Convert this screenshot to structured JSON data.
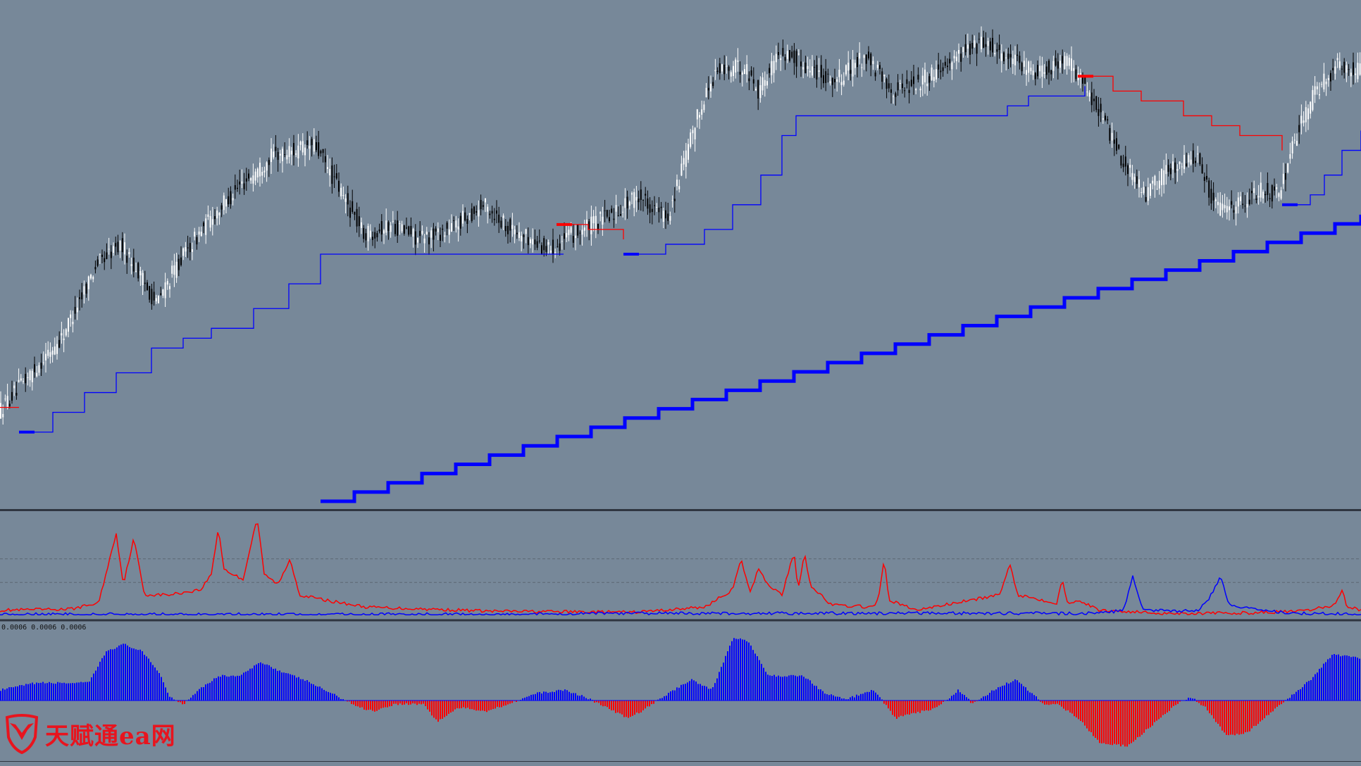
{
  "colors": {
    "background": "#778899",
    "candle_bull": "#ffffff",
    "candle_bear": "#000000",
    "trail_up": "#0000ff",
    "trail_down": "#ff0000",
    "separator": "#2f3540",
    "zero_line": "#0000ff",
    "hist_pos": "#0000ff",
    "hist_neg": "#ff0000",
    "grid": "#5c6773"
  },
  "watermark": {
    "text": "天赋通ea网",
    "icon": "bull-shield-icon"
  },
  "panel3": {
    "label": "0.0006 0.0006 0.0006"
  },
  "chart_data": [
    {
      "type": "candlestick",
      "panel": "main",
      "grid": false,
      "ylim": [
        0,
        1
      ],
      "price_path": [
        [
          0,
          0.18
        ],
        [
          60,
          0.28
        ],
        [
          90,
          0.33
        ],
        [
          140,
          0.48
        ],
        [
          175,
          0.52
        ],
        [
          225,
          0.4
        ],
        [
          255,
          0.48
        ],
        [
          300,
          0.57
        ],
        [
          345,
          0.64
        ],
        [
          390,
          0.7
        ],
        [
          450,
          0.72
        ],
        [
          520,
          0.54
        ],
        [
          560,
          0.56
        ],
        [
          600,
          0.53
        ],
        [
          640,
          0.55
        ],
        [
          690,
          0.6
        ],
        [
          730,
          0.55
        ],
        [
          780,
          0.51
        ],
        [
          830,
          0.55
        ],
        [
          870,
          0.58
        ],
        [
          910,
          0.62
        ],
        [
          950,
          0.57
        ],
        [
          1000,
          0.81
        ],
        [
          1020,
          0.87
        ],
        [
          1060,
          0.88
        ],
        [
          1080,
          0.83
        ],
        [
          1110,
          0.91
        ],
        [
          1150,
          0.88
        ],
        [
          1190,
          0.85
        ],
        [
          1230,
          0.9
        ],
        [
          1270,
          0.83
        ],
        [
          1310,
          0.85
        ],
        [
          1360,
          0.9
        ],
        [
          1400,
          0.93
        ],
        [
          1440,
          0.89
        ],
        [
          1470,
          0.87
        ],
        [
          1520,
          0.89
        ],
        [
          1560,
          0.8
        ],
        [
          1600,
          0.68
        ],
        [
          1630,
          0.62
        ],
        [
          1660,
          0.67
        ],
        [
          1700,
          0.7
        ],
        [
          1730,
          0.59
        ],
        [
          1760,
          0.6
        ],
        [
          1790,
          0.63
        ],
        [
          1820,
          0.62
        ],
        [
          1840,
          0.73
        ],
        [
          1870,
          0.83
        ],
        [
          1900,
          0.88
        ],
        [
          1932,
          0.87
        ]
      ],
      "fast_trail": [
        {
          "x": [
            0,
            27
          ],
          "level": 0.19,
          "color": "down"
        },
        {
          "x": [
            27,
            790
          ],
          "levels": [
            [
              27,
              0.14
            ],
            [
              75,
              0.18
            ],
            [
              120,
              0.22
            ],
            [
              165,
              0.26
            ],
            [
              215,
              0.31
            ],
            [
              260,
              0.33
            ],
            [
              300,
              0.35
            ],
            [
              360,
              0.39
            ],
            [
              410,
              0.44
            ],
            [
              455,
              0.5
            ],
            [
              800,
              0.5
            ]
          ],
          "color": "up"
        },
        {
          "x": [
            790,
            885
          ],
          "levels": [
            [
              790,
              0.56
            ],
            [
              835,
              0.55
            ],
            [
              885,
              0.53
            ]
          ],
          "color": "down"
        },
        {
          "x": [
            885,
            1530
          ],
          "levels": [
            [
              885,
              0.5
            ],
            [
              945,
              0.52
            ],
            [
              1000,
              0.55
            ],
            [
              1040,
              0.6
            ],
            [
              1080,
              0.66
            ],
            [
              1110,
              0.74
            ],
            [
              1130,
              0.78
            ],
            [
              1380,
              0.78
            ],
            [
              1430,
              0.8
            ],
            [
              1460,
              0.82
            ],
            [
              1540,
              0.84
            ]
          ],
          "color": "up"
        },
        {
          "x": [
            1530,
            1820
          ],
          "levels": [
            [
              1530,
              0.86
            ],
            [
              1580,
              0.83
            ],
            [
              1620,
              0.81
            ],
            [
              1680,
              0.78
            ],
            [
              1720,
              0.76
            ],
            [
              1760,
              0.74
            ],
            [
              1820,
              0.71
            ]
          ],
          "color": "down"
        },
        {
          "x": [
            1820,
            1932
          ],
          "levels": [
            [
              1820,
              0.6
            ],
            [
              1860,
              0.62
            ],
            [
              1880,
              0.66
            ],
            [
              1905,
              0.71
            ],
            [
              1932,
              0.75
            ]
          ],
          "color": "up"
        }
      ],
      "slow_trail_start": [
        455,
        0.0
      ],
      "slow_trail_end": [
        1932,
        0.58
      ],
      "slow_trail_step_width": 48
    },
    {
      "type": "line",
      "panel": "indicator",
      "grid": true,
      "ylim": [
        0,
        1
      ],
      "series": [
        {
          "color": "#ff0000",
          "values": [
            [
              0,
              0.05
            ],
            [
              100,
              0.06
            ],
            [
              140,
              0.12
            ],
            [
              165,
              0.8
            ],
            [
              175,
              0.3
            ],
            [
              190,
              0.75
            ],
            [
              205,
              0.2
            ],
            [
              240,
              0.2
            ],
            [
              285,
              0.25
            ],
            [
              300,
              0.4
            ],
            [
              310,
              0.85
            ],
            [
              318,
              0.45
            ],
            [
              330,
              0.4
            ],
            [
              345,
              0.35
            ],
            [
              365,
              0.95
            ],
            [
              375,
              0.4
            ],
            [
              395,
              0.3
            ],
            [
              412,
              0.55
            ],
            [
              425,
              0.2
            ],
            [
              460,
              0.15
            ],
            [
              520,
              0.08
            ],
            [
              700,
              0.04
            ],
            [
              900,
              0.03
            ],
            [
              1000,
              0.08
            ],
            [
              1040,
              0.25
            ],
            [
              1052,
              0.54
            ],
            [
              1065,
              0.22
            ],
            [
              1077,
              0.46
            ],
            [
              1090,
              0.3
            ],
            [
              1110,
              0.2
            ],
            [
              1127,
              0.61
            ],
            [
              1133,
              0.25
            ],
            [
              1142,
              0.61
            ],
            [
              1150,
              0.3
            ],
            [
              1180,
              0.1
            ],
            [
              1240,
              0.08
            ],
            [
              1247,
              0.15
            ],
            [
              1255,
              0.55
            ],
            [
              1262,
              0.15
            ],
            [
              1300,
              0.05
            ],
            [
              1380,
              0.15
            ],
            [
              1420,
              0.2
            ],
            [
              1433,
              0.51
            ],
            [
              1445,
              0.2
            ],
            [
              1500,
              0.12
            ],
            [
              1508,
              0.35
            ],
            [
              1515,
              0.12
            ],
            [
              1530,
              0.15
            ],
            [
              1560,
              0.05
            ],
            [
              1650,
              0.02
            ],
            [
              1750,
              0.02
            ],
            [
              1850,
              0.04
            ],
            [
              1895,
              0.1
            ],
            [
              1905,
              0.25
            ],
            [
              1912,
              0.09
            ],
            [
              1932,
              0.05
            ]
          ]
        },
        {
          "color": "#0000ff",
          "values": [
            [
              0,
              0.01
            ],
            [
              800,
              0.01
            ],
            [
              860,
              0.02
            ],
            [
              950,
              0.02
            ],
            [
              1560,
              0.02
            ],
            [
              1595,
              0.05
            ],
            [
              1608,
              0.38
            ],
            [
              1622,
              0.05
            ],
            [
              1700,
              0.04
            ],
            [
              1715,
              0.15
            ],
            [
              1733,
              0.38
            ],
            [
              1745,
              0.1
            ],
            [
              1790,
              0.06
            ],
            [
              1830,
              0.02
            ],
            [
              1932,
              0.01
            ]
          ]
        }
      ],
      "levels": [
        0.55,
        0.32
      ]
    },
    {
      "type": "bar",
      "panel": "histogram",
      "grid": false,
      "ylim": [
        -1,
        1
      ],
      "values": [
        [
          0,
          0.15
        ],
        [
          50,
          0.25
        ],
        [
          100,
          0.25
        ],
        [
          125,
          0.25
        ],
        [
          150,
          0.7
        ],
        [
          175,
          0.8
        ],
        [
          200,
          0.7
        ],
        [
          225,
          0.4
        ],
        [
          240,
          0.05
        ],
        [
          260,
          -0.05
        ],
        [
          280,
          0.15
        ],
        [
          310,
          0.35
        ],
        [
          340,
          0.35
        ],
        [
          370,
          0.55
        ],
        [
          400,
          0.4
        ],
        [
          430,
          0.3
        ],
        [
          470,
          0.1
        ],
        [
          510,
          -0.1
        ],
        [
          530,
          -0.15
        ],
        [
          560,
          -0.05
        ],
        [
          600,
          -0.05
        ],
        [
          620,
          -0.3
        ],
        [
          650,
          -0.1
        ],
        [
          690,
          -0.15
        ],
        [
          720,
          -0.05
        ],
        [
          760,
          0.1
        ],
        [
          800,
          0.15
        ],
        [
          830,
          0.05
        ],
        [
          870,
          -0.15
        ],
        [
          890,
          -0.25
        ],
        [
          910,
          -0.15
        ],
        [
          940,
          0.05
        ],
        [
          980,
          0.3
        ],
        [
          1010,
          0.15
        ],
        [
          1040,
          0.9
        ],
        [
          1060,
          0.85
        ],
        [
          1090,
          0.35
        ],
        [
          1110,
          0.35
        ],
        [
          1140,
          0.35
        ],
        [
          1170,
          0.1
        ],
        [
          1200,
          0.02
        ],
        [
          1240,
          0.15
        ],
        [
          1270,
          -0.25
        ],
        [
          1310,
          -0.15
        ],
        [
          1330,
          -0.1
        ],
        [
          1360,
          0.15
        ],
        [
          1380,
          -0.05
        ],
        [
          1410,
          0.15
        ],
        [
          1440,
          0.3
        ],
        [
          1470,
          0.05
        ],
        [
          1480,
          -0.05
        ],
        [
          1500,
          -0.05
        ],
        [
          1530,
          -0.25
        ],
        [
          1560,
          -0.6
        ],
        [
          1600,
          -0.65
        ],
        [
          1640,
          -0.3
        ],
        [
          1670,
          -0.05
        ],
        [
          1690,
          0.05
        ],
        [
          1710,
          -0.1
        ],
        [
          1740,
          -0.5
        ],
        [
          1770,
          -0.45
        ],
        [
          1800,
          -0.2
        ],
        [
          1830,
          0.05
        ],
        [
          1860,
          0.3
        ],
        [
          1890,
          0.65
        ],
        [
          1932,
          0.6
        ]
      ]
    }
  ]
}
